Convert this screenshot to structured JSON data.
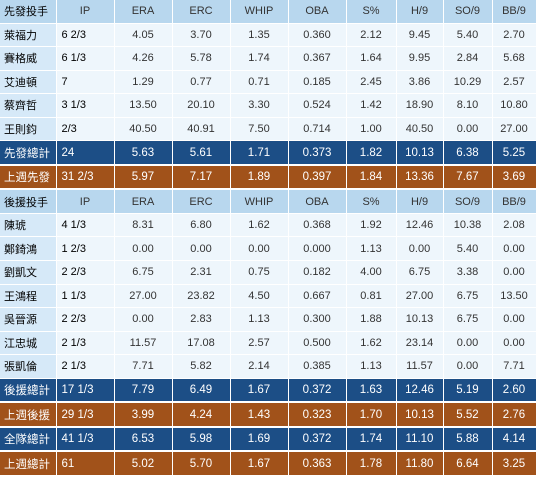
{
  "columns": [
    "IP",
    "ERA",
    "ERC",
    "WHIP",
    "OBA",
    "S%",
    "H/9",
    "SO/9",
    "BB/9"
  ],
  "colors": {
    "header": "#b8d7ee",
    "row": "#eef6fc",
    "name_cell": "#d6e9f8",
    "summary_blue": "#1c4e86",
    "summary_orange": "#a1521a"
  },
  "starters": {
    "header": "先發投手",
    "rows": [
      {
        "name": "萊福力",
        "stats": [
          "6 2/3",
          "4.05",
          "3.70",
          "1.35",
          "0.360",
          "2.12",
          "9.45",
          "5.40",
          "2.70"
        ]
      },
      {
        "name": "賽格威",
        "stats": [
          "6 1/3",
          "4.26",
          "5.78",
          "1.74",
          "0.367",
          "1.64",
          "9.95",
          "2.84",
          "5.68"
        ]
      },
      {
        "name": "艾迪頓",
        "stats": [
          "7",
          "1.29",
          "0.77",
          "0.71",
          "0.185",
          "2.45",
          "3.86",
          "10.29",
          "2.57"
        ]
      },
      {
        "name": "蔡齊哲",
        "stats": [
          "3 1/3",
          "13.50",
          "20.10",
          "3.30",
          "0.524",
          "1.42",
          "18.90",
          "8.10",
          "10.80"
        ]
      },
      {
        "name": "王則鈞",
        "stats": [
          "2/3",
          "40.50",
          "40.91",
          "7.50",
          "0.714",
          "1.00",
          "40.50",
          "0.00",
          "27.00"
        ]
      }
    ],
    "summaries": [
      {
        "name": "先發總計",
        "color": "blue",
        "stats": [
          "24",
          "5.63",
          "5.61",
          "1.71",
          "0.373",
          "1.82",
          "10.13",
          "6.38",
          "5.25"
        ]
      },
      {
        "name": "上週先發",
        "color": "orange",
        "stats": [
          "31 2/3",
          "5.97",
          "7.17",
          "1.89",
          "0.397",
          "1.84",
          "13.36",
          "7.67",
          "3.69"
        ]
      }
    ]
  },
  "relievers": {
    "header": "後援投手",
    "rows": [
      {
        "name": "陳琥",
        "stats": [
          "4 1/3",
          "8.31",
          "6.80",
          "1.62",
          "0.368",
          "1.92",
          "12.46",
          "10.38",
          "2.08"
        ]
      },
      {
        "name": "鄭錡鴻",
        "stats": [
          "1 2/3",
          "0.00",
          "0.00",
          "0.00",
          "0.000",
          "1.13",
          "0.00",
          "5.40",
          "0.00"
        ]
      },
      {
        "name": "劉凱文",
        "stats": [
          "2 2/3",
          "6.75",
          "2.31",
          "0.75",
          "0.182",
          "4.00",
          "6.75",
          "3.38",
          "0.00"
        ]
      },
      {
        "name": "王鴻程",
        "stats": [
          "1 1/3",
          "27.00",
          "23.82",
          "4.50",
          "0.667",
          "0.81",
          "27.00",
          "6.75",
          "13.50"
        ]
      },
      {
        "name": "吳晉源",
        "stats": [
          "2 2/3",
          "0.00",
          "2.83",
          "1.13",
          "0.300",
          "1.88",
          "10.13",
          "6.75",
          "0.00"
        ]
      },
      {
        "name": "江忠城",
        "stats": [
          "2 1/3",
          "11.57",
          "17.08",
          "2.57",
          "0.500",
          "1.62",
          "23.14",
          "0.00",
          "0.00"
        ]
      },
      {
        "name": "張凱倫",
        "stats": [
          "2 1/3",
          "7.71",
          "5.82",
          "2.14",
          "0.385",
          "1.13",
          "11.57",
          "0.00",
          "7.71"
        ]
      }
    ],
    "summaries": [
      {
        "name": "後援總計",
        "color": "blue",
        "stats": [
          "17 1/3",
          "7.79",
          "6.49",
          "1.67",
          "0.372",
          "1.63",
          "12.46",
          "5.19",
          "2.60"
        ]
      },
      {
        "name": "上週後援",
        "color": "orange",
        "stats": [
          "29 1/3",
          "3.99",
          "4.24",
          "1.43",
          "0.323",
          "1.70",
          "10.13",
          "5.52",
          "2.76"
        ]
      },
      {
        "name": "全隊總計",
        "color": "blue",
        "stats": [
          "41 1/3",
          "6.53",
          "5.98",
          "1.69",
          "0.372",
          "1.74",
          "11.10",
          "5.88",
          "4.14"
        ]
      },
      {
        "name": "上週總計",
        "color": "orange",
        "stats": [
          "61",
          "5.02",
          "5.70",
          "1.67",
          "0.363",
          "1.78",
          "11.80",
          "6.64",
          "3.25"
        ]
      }
    ]
  }
}
